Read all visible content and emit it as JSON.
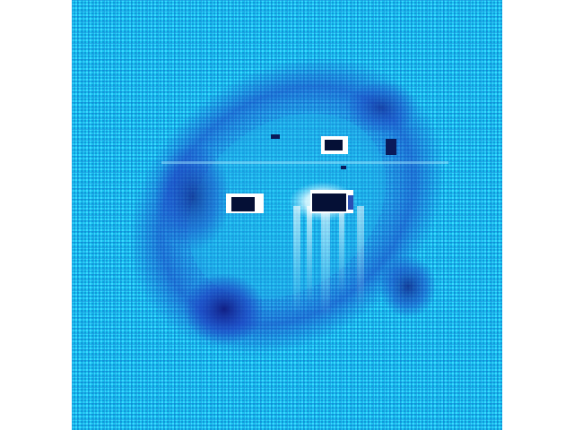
{
  "image": {
    "description_kind": "false-color diffraction-style intensity map",
    "colors": {
      "background": "#19c3ee",
      "grid_light": "#4fdcff",
      "grid_dark": "#0e8fd8",
      "halo": "#2e5fd6",
      "deep_blue": "#16208e",
      "hot": "#ffffff",
      "dark_spot": "#051036"
    }
  }
}
